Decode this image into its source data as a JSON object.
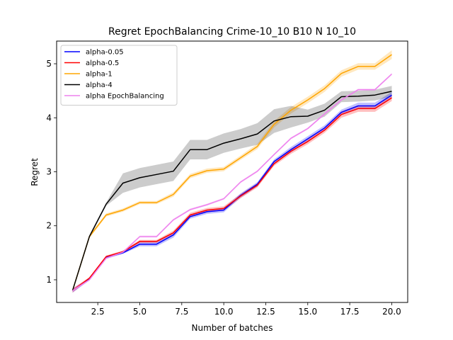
{
  "chart_data": {
    "type": "line",
    "title": "Regret EpochBalancing Crime-10_10 B10 N 10_10",
    "xlabel": "Number of batches",
    "ylabel": "Regret",
    "xlim": [
      0.05,
      20.95
    ],
    "ylim": [
      0.58,
      5.42
    ],
    "xticks": [
      2.5,
      5.0,
      7.5,
      10.0,
      12.5,
      15.0,
      17.5,
      20.0
    ],
    "xtick_labels": [
      "2.5",
      "5.0",
      "7.5",
      "10.0",
      "12.5",
      "15.0",
      "17.5",
      "20.0"
    ],
    "yticks": [
      1,
      2,
      3,
      4,
      5
    ],
    "ytick_labels": [
      "1",
      "2",
      "3",
      "4",
      "5"
    ],
    "grid": false,
    "legend_position": "top-left",
    "x": [
      1,
      2,
      3,
      4,
      5,
      6,
      7,
      8,
      9,
      10,
      11,
      12,
      13,
      14,
      15,
      16,
      17,
      18,
      19,
      20
    ],
    "series": [
      {
        "name": "alpha-0.05",
        "color": "#0000ff",
        "values": [
          0.8,
          1.01,
          1.41,
          1.5,
          1.66,
          1.66,
          1.83,
          2.17,
          2.26,
          2.29,
          2.56,
          2.77,
          3.19,
          3.41,
          3.61,
          3.81,
          4.1,
          4.22,
          4.22,
          4.42
        ],
        "band": [
          0.04,
          0.02,
          0.02,
          0.02,
          0.04,
          0.04,
          0.05,
          0.04,
          0.04,
          0.04,
          0.04,
          0.04,
          0.04,
          0.05,
          0.05,
          0.05,
          0.05,
          0.06,
          0.06,
          0.06
        ]
      },
      {
        "name": "alpha-0.5",
        "color": "#ff0000",
        "values": [
          0.8,
          1.03,
          1.43,
          1.52,
          1.71,
          1.71,
          1.87,
          2.2,
          2.29,
          2.32,
          2.55,
          2.75,
          3.15,
          3.38,
          3.56,
          3.77,
          4.06,
          4.17,
          4.17,
          4.37
        ],
        "band": [
          0.04,
          0.02,
          0.02,
          0.02,
          0.03,
          0.03,
          0.04,
          0.04,
          0.04,
          0.04,
          0.04,
          0.04,
          0.04,
          0.05,
          0.05,
          0.05,
          0.06,
          0.06,
          0.06,
          0.06
        ]
      },
      {
        "name": "alpha-1",
        "color": "#ffa500",
        "values": [
          0.8,
          1.8,
          2.2,
          2.29,
          2.43,
          2.43,
          2.58,
          2.92,
          3.02,
          3.05,
          3.26,
          3.47,
          3.88,
          4.14,
          4.33,
          4.54,
          4.82,
          4.95,
          4.95,
          5.17
        ],
        "band": [
          0.02,
          0.03,
          0.03,
          0.03,
          0.03,
          0.03,
          0.04,
          0.04,
          0.04,
          0.04,
          0.04,
          0.05,
          0.06,
          0.06,
          0.06,
          0.06,
          0.06,
          0.06,
          0.06,
          0.08
        ]
      },
      {
        "name": "alpha-4",
        "color": "#000000",
        "values": [
          0.8,
          1.8,
          2.4,
          2.79,
          2.89,
          2.95,
          3.01,
          3.41,
          3.41,
          3.53,
          3.61,
          3.7,
          3.94,
          4.02,
          4.03,
          4.14,
          4.39,
          4.4,
          4.42,
          4.49
        ],
        "band": [
          0.02,
          0.03,
          0.03,
          0.18,
          0.18,
          0.18,
          0.18,
          0.18,
          0.18,
          0.18,
          0.18,
          0.2,
          0.22,
          0.2,
          0.12,
          0.12,
          0.1,
          0.1,
          0.1,
          0.1
        ]
      },
      {
        "name": "alpha EpochBalancing",
        "color": "#ee82ee",
        "values": [
          0.8,
          1.0,
          1.4,
          1.51,
          1.8,
          1.8,
          2.11,
          2.3,
          2.39,
          2.5,
          2.81,
          3.01,
          3.32,
          3.62,
          3.8,
          4.07,
          4.33,
          4.52,
          4.52,
          4.81
        ],
        "band": [
          0.02,
          0.02,
          0.02,
          0.02,
          0.02,
          0.02,
          0.02,
          0.02,
          0.02,
          0.02,
          0.02,
          0.02,
          0.02,
          0.02,
          0.02,
          0.02,
          0.02,
          0.02,
          0.02,
          0.02
        ]
      }
    ]
  }
}
